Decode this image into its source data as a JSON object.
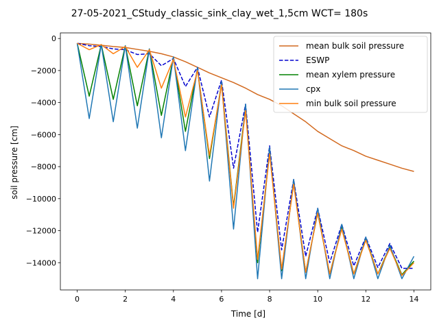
{
  "chart_data": {
    "type": "line",
    "title": "27-05-2021_CStudy_classic_sink_clay_wet_1,5cm  WCT= 180s",
    "xlabel": "Time [d]",
    "ylabel": "soil pressure [cm]",
    "xlim": [
      -0.7,
      14.7
    ],
    "ylim": [
      -15700,
      350
    ],
    "xticks": [
      0,
      2,
      4,
      6,
      8,
      10,
      12,
      14
    ],
    "yticks": [
      0,
      -2000,
      -4000,
      -6000,
      -8000,
      -10000,
      -12000,
      -14000
    ],
    "xtick_labels": [
      "0",
      "2",
      "4",
      "6",
      "8",
      "10",
      "12",
      "14"
    ],
    "ytick_labels": [
      "0",
      "−2000",
      "−4000",
      "−6000",
      "−8000",
      "−10000",
      "−12000",
      "−14000"
    ],
    "grid": false,
    "legend_position": "top-right",
    "series": [
      {
        "name": "mean bulk soil pressure",
        "color": "#d2691e",
        "dash": "solid",
        "points": [
          [
            0,
            -300
          ],
          [
            0.5,
            -350
          ],
          [
            1,
            -420
          ],
          [
            1.5,
            -500
          ],
          [
            2,
            -560
          ],
          [
            2.5,
            -680
          ],
          [
            3,
            -800
          ],
          [
            3.5,
            -950
          ],
          [
            4,
            -1150
          ],
          [
            4.5,
            -1450
          ],
          [
            5,
            -1800
          ],
          [
            5.5,
            -2150
          ],
          [
            6,
            -2450
          ],
          [
            6.5,
            -2750
          ],
          [
            7,
            -3100
          ],
          [
            7.5,
            -3500
          ],
          [
            8,
            -3800
          ],
          [
            8.5,
            -4200
          ],
          [
            9,
            -4700
          ],
          [
            9.5,
            -5200
          ],
          [
            10,
            -5800
          ],
          [
            10.5,
            -6250
          ],
          [
            11,
            -6700
          ],
          [
            11.5,
            -7000
          ],
          [
            12,
            -7350
          ],
          [
            12.5,
            -7600
          ],
          [
            13,
            -7850
          ],
          [
            13.5,
            -8100
          ],
          [
            14,
            -8300
          ]
        ]
      },
      {
        "name": "ESWP",
        "color": "#0000cd",
        "dash": "dashed",
        "points": [
          [
            0,
            -300
          ],
          [
            0.5,
            -450
          ],
          [
            1,
            -500
          ],
          [
            1.5,
            -650
          ],
          [
            2,
            -700
          ],
          [
            2.5,
            -1000
          ],
          [
            3,
            -950
          ],
          [
            3.5,
            -1700
          ],
          [
            4,
            -1250
          ],
          [
            4.5,
            -3000
          ],
          [
            5,
            -1800
          ],
          [
            5.5,
            -4900
          ],
          [
            6,
            -2600
          ],
          [
            6.5,
            -8100
          ],
          [
            7,
            -4100
          ],
          [
            7.5,
            -12100
          ],
          [
            8,
            -6700
          ],
          [
            8.5,
            -13200
          ],
          [
            9,
            -8800
          ],
          [
            9.5,
            -13600
          ],
          [
            10,
            -10600
          ],
          [
            10.5,
            -14000
          ],
          [
            11,
            -11600
          ],
          [
            11.5,
            -14200
          ],
          [
            12,
            -12400
          ],
          [
            12.5,
            -14300
          ],
          [
            13,
            -12800
          ],
          [
            13.5,
            -14350
          ],
          [
            14,
            -14350
          ]
        ]
      },
      {
        "name": "mean xylem pressure",
        "color": "#008000",
        "dash": "solid",
        "points": [
          [
            0,
            -300
          ],
          [
            0.5,
            -3600
          ],
          [
            1,
            -380
          ],
          [
            1.5,
            -3800
          ],
          [
            2,
            -450
          ],
          [
            2.5,
            -4200
          ],
          [
            3,
            -650
          ],
          [
            3.5,
            -4800
          ],
          [
            4,
            -1200
          ],
          [
            4.5,
            -5800
          ],
          [
            5,
            -1900
          ],
          [
            5.5,
            -7500
          ],
          [
            6,
            -2800
          ],
          [
            6.5,
            -10500
          ],
          [
            7,
            -4300
          ],
          [
            7.5,
            -14000
          ],
          [
            8,
            -7000
          ],
          [
            8.5,
            -14500
          ],
          [
            9,
            -9000
          ],
          [
            9.5,
            -14600
          ],
          [
            10,
            -10900
          ],
          [
            10.5,
            -14700
          ],
          [
            11,
            -11800
          ],
          [
            11.5,
            -14700
          ],
          [
            12,
            -12500
          ],
          [
            12.5,
            -14700
          ],
          [
            13,
            -13000
          ],
          [
            13.5,
            -14750
          ],
          [
            14,
            -13900
          ]
        ]
      },
      {
        "name": "cpx",
        "color": "#1f77b4",
        "dash": "solid",
        "points": [
          [
            0,
            -300
          ],
          [
            0.5,
            -5000
          ],
          [
            1,
            -380
          ],
          [
            1.5,
            -5200
          ],
          [
            2,
            -450
          ],
          [
            2.5,
            -5600
          ],
          [
            3,
            -650
          ],
          [
            3.5,
            -6200
          ],
          [
            4,
            -1150
          ],
          [
            4.5,
            -7000
          ],
          [
            5,
            -1800
          ],
          [
            5.5,
            -8900
          ],
          [
            6,
            -2700
          ],
          [
            6.5,
            -11900
          ],
          [
            7,
            -4100
          ],
          [
            7.5,
            -15000
          ],
          [
            8,
            -6800
          ],
          [
            8.5,
            -15000
          ],
          [
            9,
            -8800
          ],
          [
            9.5,
            -15000
          ],
          [
            10,
            -10600
          ],
          [
            10.5,
            -15000
          ],
          [
            11,
            -11600
          ],
          [
            11.5,
            -15000
          ],
          [
            12,
            -12400
          ],
          [
            12.5,
            -15000
          ],
          [
            13,
            -12900
          ],
          [
            13.5,
            -15000
          ],
          [
            14,
            -13600
          ]
        ]
      },
      {
        "name": "min bulk soil pressure",
        "color": "#ff7f0e",
        "dash": "solid",
        "points": [
          [
            0,
            -300
          ],
          [
            0.5,
            -700
          ],
          [
            1,
            -380
          ],
          [
            1.5,
            -950
          ],
          [
            2,
            -500
          ],
          [
            2.5,
            -1800
          ],
          [
            3,
            -700
          ],
          [
            3.5,
            -3100
          ],
          [
            4,
            -1300
          ],
          [
            4.5,
            -4900
          ],
          [
            5,
            -2000
          ],
          [
            5.5,
            -7300
          ],
          [
            6,
            -2900
          ],
          [
            6.5,
            -10600
          ],
          [
            7,
            -4500
          ],
          [
            7.5,
            -13800
          ],
          [
            8,
            -7200
          ],
          [
            8.5,
            -14400
          ],
          [
            9,
            -9100
          ],
          [
            9.5,
            -14600
          ],
          [
            10,
            -10900
          ],
          [
            10.5,
            -14700
          ],
          [
            11,
            -11900
          ],
          [
            11.5,
            -14700
          ],
          [
            12,
            -12600
          ],
          [
            12.5,
            -14700
          ],
          [
            13,
            -13100
          ],
          [
            13.5,
            -14800
          ],
          [
            14,
            -14000
          ]
        ]
      }
    ]
  }
}
